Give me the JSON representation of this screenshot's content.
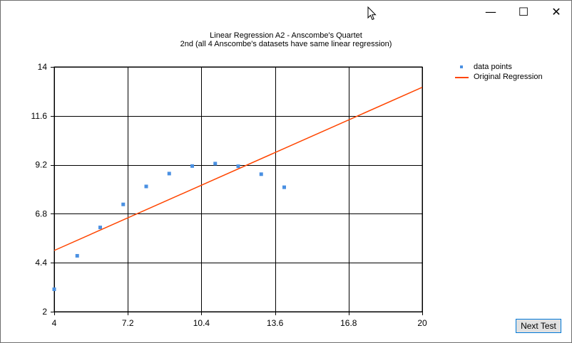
{
  "window": {
    "minimize_glyph": "—",
    "maximize_glyph": "☐",
    "close_glyph": "✕"
  },
  "chart_data": {
    "type": "scatter",
    "title": "Linear Regression A2 - Anscombe's Quartet",
    "subtitle": "2nd (all 4 Anscombe's datasets have same linear regression)",
    "xlabel": "",
    "ylabel": "",
    "xlim": [
      4,
      20
    ],
    "ylim": [
      2,
      14
    ],
    "xticks": [
      "4",
      "7.2",
      "10.4",
      "13.6",
      "16.8",
      "20"
    ],
    "yticks": [
      "2",
      "4.4",
      "6.8",
      "9.2",
      "11.6",
      "14"
    ],
    "grid": true,
    "legend_position": "top-right",
    "series": [
      {
        "name": "data points",
        "kind": "points",
        "color": "#4a90e2",
        "x": [
          4,
          5,
          6,
          7,
          8,
          9,
          10,
          11,
          12,
          13,
          14
        ],
        "y": [
          3.1,
          4.74,
          6.13,
          7.26,
          8.14,
          8.77,
          9.14,
          9.26,
          9.13,
          8.74,
          8.1
        ]
      },
      {
        "name": "Original Regression",
        "kind": "line",
        "color": "#ff4500",
        "x": [
          4,
          20
        ],
        "y": [
          5.0,
          13.0
        ]
      }
    ]
  },
  "controls": {
    "next_test_label": "Next Test"
  }
}
